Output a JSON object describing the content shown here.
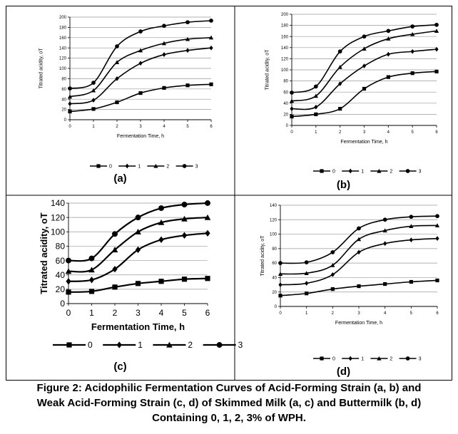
{
  "caption": {
    "line1": "Figure 2: Acidophilic Fermentation Curves of Acid-Forming Strain (a, b) and",
    "line2": "Weak Acid-Forming Strain (c, d) of Skimmed Milk (a, c) and Buttermilk (b, d)",
    "line3": "Containing 0, 1, 2, 3% of WPH."
  },
  "chart_data": [
    {
      "type": "line",
      "panel_label": "(a)",
      "xlabel": "Fermentation Time, h",
      "ylabel": "Titrated acidity, oT",
      "xlim": [
        0,
        6
      ],
      "ylim": [
        0,
        200
      ],
      "xticks": [
        0,
        1,
        2,
        3,
        4,
        5,
        6
      ],
      "yticks": [
        0,
        20,
        40,
        60,
        80,
        100,
        120,
        140,
        160,
        180,
        200
      ],
      "grid": "horizontal",
      "legend": "bottom",
      "x": [
        0,
        1,
        2,
        3,
        4,
        5,
        6
      ],
      "series": [
        {
          "name": "0",
          "marker": "square",
          "values": [
            16,
            21,
            34,
            52,
            62,
            67,
            69
          ]
        },
        {
          "name": "1",
          "marker": "diamond",
          "values": [
            31,
            38,
            80,
            110,
            127,
            135,
            140
          ]
        },
        {
          "name": "2",
          "marker": "triangle",
          "values": [
            45,
            57,
            112,
            135,
            149,
            157,
            160
          ]
        },
        {
          "name": "3",
          "marker": "circle",
          "values": [
            61,
            72,
            143,
            172,
            183,
            190,
            193
          ]
        }
      ]
    },
    {
      "type": "line",
      "panel_label": "(b)",
      "xlabel": "Fermentation Time, h",
      "ylabel": "Titrated acidity, oT",
      "xlim": [
        0,
        6
      ],
      "ylim": [
        0,
        200
      ],
      "xticks": [
        0,
        1,
        2,
        3,
        4,
        5,
        6
      ],
      "yticks": [
        0,
        20,
        40,
        60,
        80,
        100,
        120,
        140,
        160,
        180,
        200
      ],
      "grid": "horizontal",
      "legend": "bottom",
      "x": [
        0,
        1,
        2,
        3,
        4,
        5,
        6
      ],
      "series": [
        {
          "name": "0",
          "marker": "square",
          "values": [
            16,
            20,
            30,
            66,
            87,
            94,
            97
          ]
        },
        {
          "name": "1",
          "marker": "diamond",
          "values": [
            30,
            33,
            75,
            107,
            128,
            133,
            137
          ]
        },
        {
          "name": "2",
          "marker": "triangle",
          "values": [
            44,
            53,
            105,
            138,
            156,
            164,
            170
          ]
        },
        {
          "name": "3",
          "marker": "circle",
          "values": [
            59,
            70,
            133,
            160,
            170,
            178,
            181
          ]
        }
      ]
    },
    {
      "type": "line",
      "panel_label": "(c)",
      "xlabel": "Fermentation Time, h",
      "ylabel": "Titrated acidity, oT",
      "xlim": [
        0,
        6
      ],
      "ylim": [
        0,
        140
      ],
      "xticks": [
        0,
        1,
        2,
        3,
        4,
        5,
        6
      ],
      "yticks": [
        0,
        20,
        40,
        60,
        80,
        100,
        120,
        140
      ],
      "grid": "horizontal",
      "legend": "bottom",
      "x": [
        0,
        1,
        2,
        3,
        4,
        5,
        6
      ],
      "series": [
        {
          "name": "0",
          "marker": "square",
          "values": [
            16,
            17,
            23,
            28,
            31,
            34,
            35
          ]
        },
        {
          "name": "1",
          "marker": "diamond",
          "values": [
            31,
            33,
            48,
            75,
            89,
            95,
            98
          ]
        },
        {
          "name": "2",
          "marker": "triangle",
          "values": [
            45,
            47,
            75,
            100,
            113,
            118,
            120
          ]
        },
        {
          "name": "3",
          "marker": "circle",
          "values": [
            60,
            63,
            97,
            120,
            133,
            138,
            140
          ]
        }
      ]
    },
    {
      "type": "line",
      "panel_label": "(d)",
      "xlabel": "Fermentation Time, h",
      "ylabel": "Titrated acidity, oT",
      "xlim": [
        0,
        6
      ],
      "ylim": [
        0,
        140
      ],
      "xticks": [
        0,
        1,
        2,
        3,
        4,
        5,
        6
      ],
      "yticks": [
        0,
        20,
        40,
        60,
        80,
        100,
        120,
        140
      ],
      "grid": "horizontal",
      "legend": "bottom",
      "x": [
        0,
        1,
        2,
        3,
        4,
        5,
        6
      ],
      "series": [
        {
          "name": "0",
          "marker": "square",
          "values": [
            15,
            18,
            24,
            28,
            31,
            34,
            36
          ]
        },
        {
          "name": "1",
          "marker": "diamond",
          "values": [
            30,
            32,
            44,
            75,
            87,
            92,
            94
          ]
        },
        {
          "name": "2",
          "marker": "triangle",
          "values": [
            45,
            46,
            57,
            93,
            105,
            111,
            112
          ]
        },
        {
          "name": "3",
          "marker": "circle",
          "values": [
            60,
            61,
            75,
            108,
            120,
            124,
            125
          ]
        }
      ]
    }
  ]
}
